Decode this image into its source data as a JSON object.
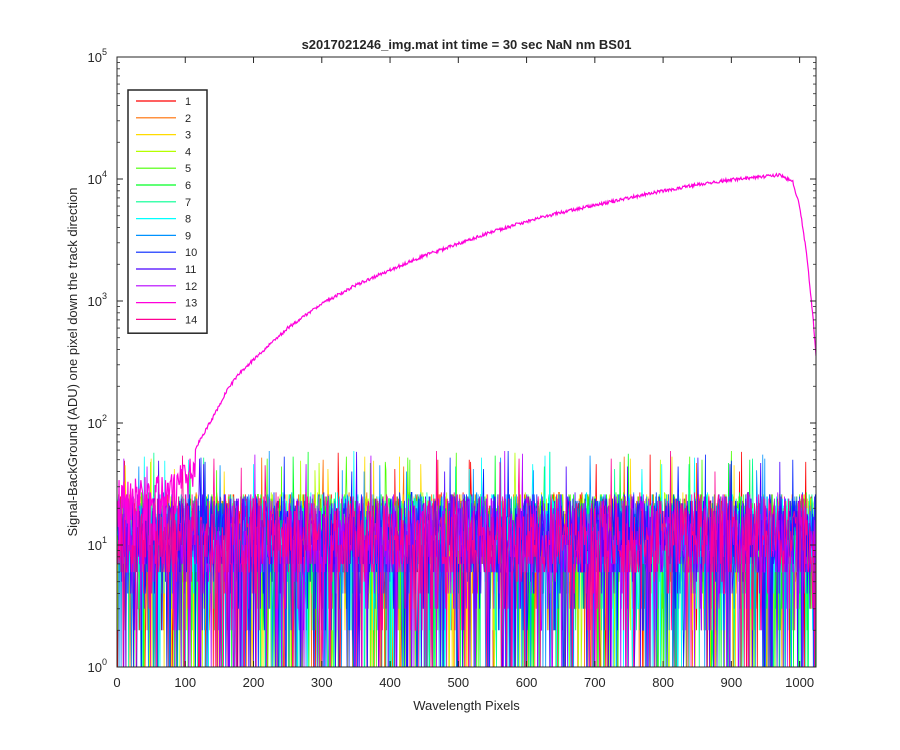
{
  "chart_data": {
    "type": "line",
    "title": "s2017021246_img.mat int time = 30 sec  NaN nm BS01",
    "xlabel": "Wavelength Pixels",
    "ylabel": "Signal-BackGround (ADU) one pixel down the track direction",
    "xlim": [
      0,
      1024
    ],
    "ylim": [
      1,
      100000
    ],
    "yscale": "log",
    "xticks": [
      0,
      100,
      200,
      300,
      400,
      500,
      600,
      700,
      800,
      900,
      1000
    ],
    "yticks": [
      {
        "value": 1,
        "base": "10",
        "exp": "0"
      },
      {
        "value": 10,
        "base": "10",
        "exp": "1"
      },
      {
        "value": 100,
        "base": "10",
        "exp": "2"
      },
      {
        "value": 1000,
        "base": "10",
        "exp": "3"
      },
      {
        "value": 10000,
        "base": "10",
        "exp": "4"
      },
      {
        "value": 100000,
        "base": "10",
        "exp": "5"
      }
    ],
    "grid": false,
    "legend_position": "top-left",
    "x_range": [
      1,
      1024
    ],
    "series": [
      {
        "name": "1",
        "color": "#ff0000",
        "noise_median": 12
      },
      {
        "name": "2",
        "color": "#ff6e00",
        "noise_median": 12
      },
      {
        "name": "3",
        "color": "#ffdb00",
        "noise_median": 12
      },
      {
        "name": "4",
        "color": "#b6ff00",
        "noise_median": 12
      },
      {
        "name": "5",
        "color": "#49ff00",
        "noise_median": 12
      },
      {
        "name": "6",
        "color": "#00ff25",
        "noise_median": 12
      },
      {
        "name": "7",
        "color": "#00ff92",
        "noise_median": 12
      },
      {
        "name": "8",
        "color": "#00ffff",
        "noise_median": 12
      },
      {
        "name": "9",
        "color": "#0092ff",
        "noise_median": 12
      },
      {
        "name": "10",
        "color": "#0025ff",
        "noise_median": 12
      },
      {
        "name": "11",
        "color": "#4900ff",
        "noise_median": 12
      },
      {
        "name": "12",
        "color": "#b600ff",
        "noise_median": 12
      },
      {
        "name": "13",
        "color": "#ff00db",
        "noise_median": 12,
        "x": [
          1,
          50,
          100,
          120,
          140,
          160,
          180,
          200,
          250,
          300,
          350,
          400,
          450,
          500,
          550,
          600,
          650,
          700,
          750,
          800,
          850,
          900,
          950,
          970,
          990,
          1000,
          1010,
          1020,
          1024
        ],
        "y": [
          15,
          18,
          40,
          70,
          110,
          180,
          260,
          330,
          600,
          950,
          1350,
          1800,
          2350,
          2950,
          3700,
          4500,
          5300,
          6100,
          7000,
          8000,
          9000,
          9900,
          10500,
          10800,
          9500,
          6000,
          2500,
          700,
          350
        ]
      },
      {
        "name": "14",
        "color": "#ff0092",
        "noise_median": 12
      }
    ]
  }
}
